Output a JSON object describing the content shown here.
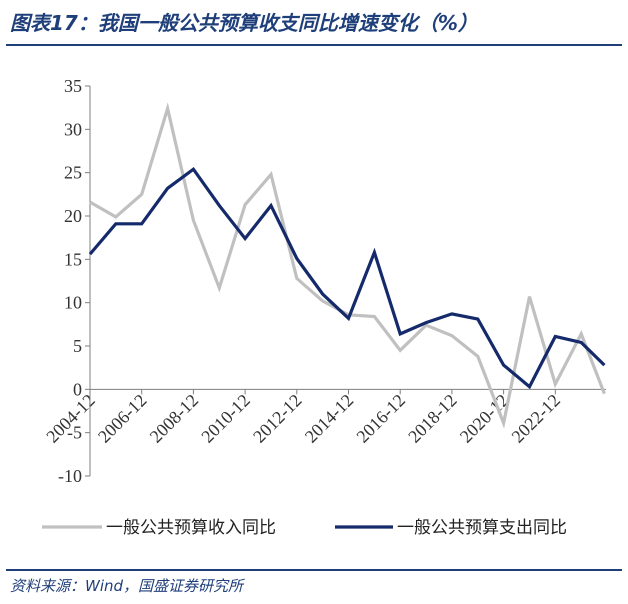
{
  "title": "图表17：我国一般公共预算收支同比增速变化（%）",
  "source": "资料来源：Wind，国盛证券研究所",
  "colors": {
    "revenue": "#c0c0c0",
    "expenditure": "#152a6b",
    "axis": "#7f7f7f",
    "accent": "#1f3f7a"
  },
  "chart_data": {
    "type": "line",
    "title": "我国一般公共预算收支同比增速变化（%）",
    "xlabel": "",
    "ylabel": "",
    "ylim": [
      -10,
      35
    ],
    "yticks": [
      35,
      30,
      25,
      20,
      15,
      10,
      5,
      0,
      -5,
      -10
    ],
    "ytick_labels": [
      "35",
      "30",
      "25",
      "20",
      "15",
      "10",
      "5",
      "0",
      "-5",
      "-10"
    ],
    "x": [
      "2004-12",
      "2005-12",
      "2006-12",
      "2007-12",
      "2008-12",
      "2009-12",
      "2010-12",
      "2011-12",
      "2012-12",
      "2013-12",
      "2014-12",
      "2015-12",
      "2016-12",
      "2017-12",
      "2018-12",
      "2019-12",
      "2020-12",
      "2021-12",
      "2022-12",
      "2023-12"
    ],
    "xtick_labels": [
      "2004-12",
      "2006-12",
      "2008-12",
      "2010-12",
      "2012-12",
      "2014-12",
      "2016-12",
      "2018-12",
      "2020-12",
      "2022-12"
    ],
    "grid": false,
    "legend_position": "bottom",
    "series": [
      {
        "name": "一般公共预算收入同比",
        "values": [
          21.6,
          19.9,
          22.5,
          32.4,
          19.5,
          11.7,
          21.3,
          24.8,
          12.8,
          10.2,
          8.6,
          8.4,
          4.5,
          7.4,
          6.2,
          3.8,
          -3.9,
          10.7,
          0.6,
          6.4
        ]
      },
      {
        "name": "一般公共预算支出同比",
        "values": [
          15.6,
          19.1,
          19.1,
          23.2,
          25.4,
          21.2,
          17.4,
          21.2,
          15.1,
          11.0,
          8.2,
          15.8,
          6.4,
          7.7,
          8.7,
          8.1,
          2.8,
          0.3,
          6.1,
          5.4
        ]
      }
    ],
    "trailing_values": [
      -0.5,
      2.8
    ]
  }
}
